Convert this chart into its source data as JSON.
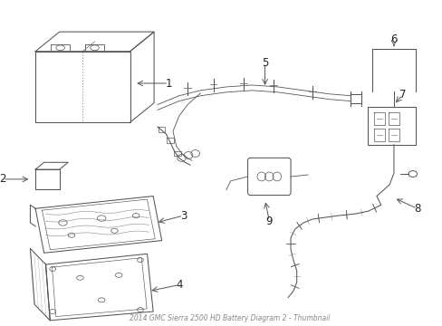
{
  "background_color": "#ffffff",
  "line_color": "#555555",
  "fig_width": 4.89,
  "fig_height": 3.6,
  "dpi": 100,
  "title_text": "2014 GMC Sierra 2500 HD Battery Diagram 2 - Thumbnail",
  "title_fontsize": 5.5,
  "title_color": "#888888",
  "label_fontsize": 8.5,
  "label_color": "#222222",
  "lw": 0.75
}
